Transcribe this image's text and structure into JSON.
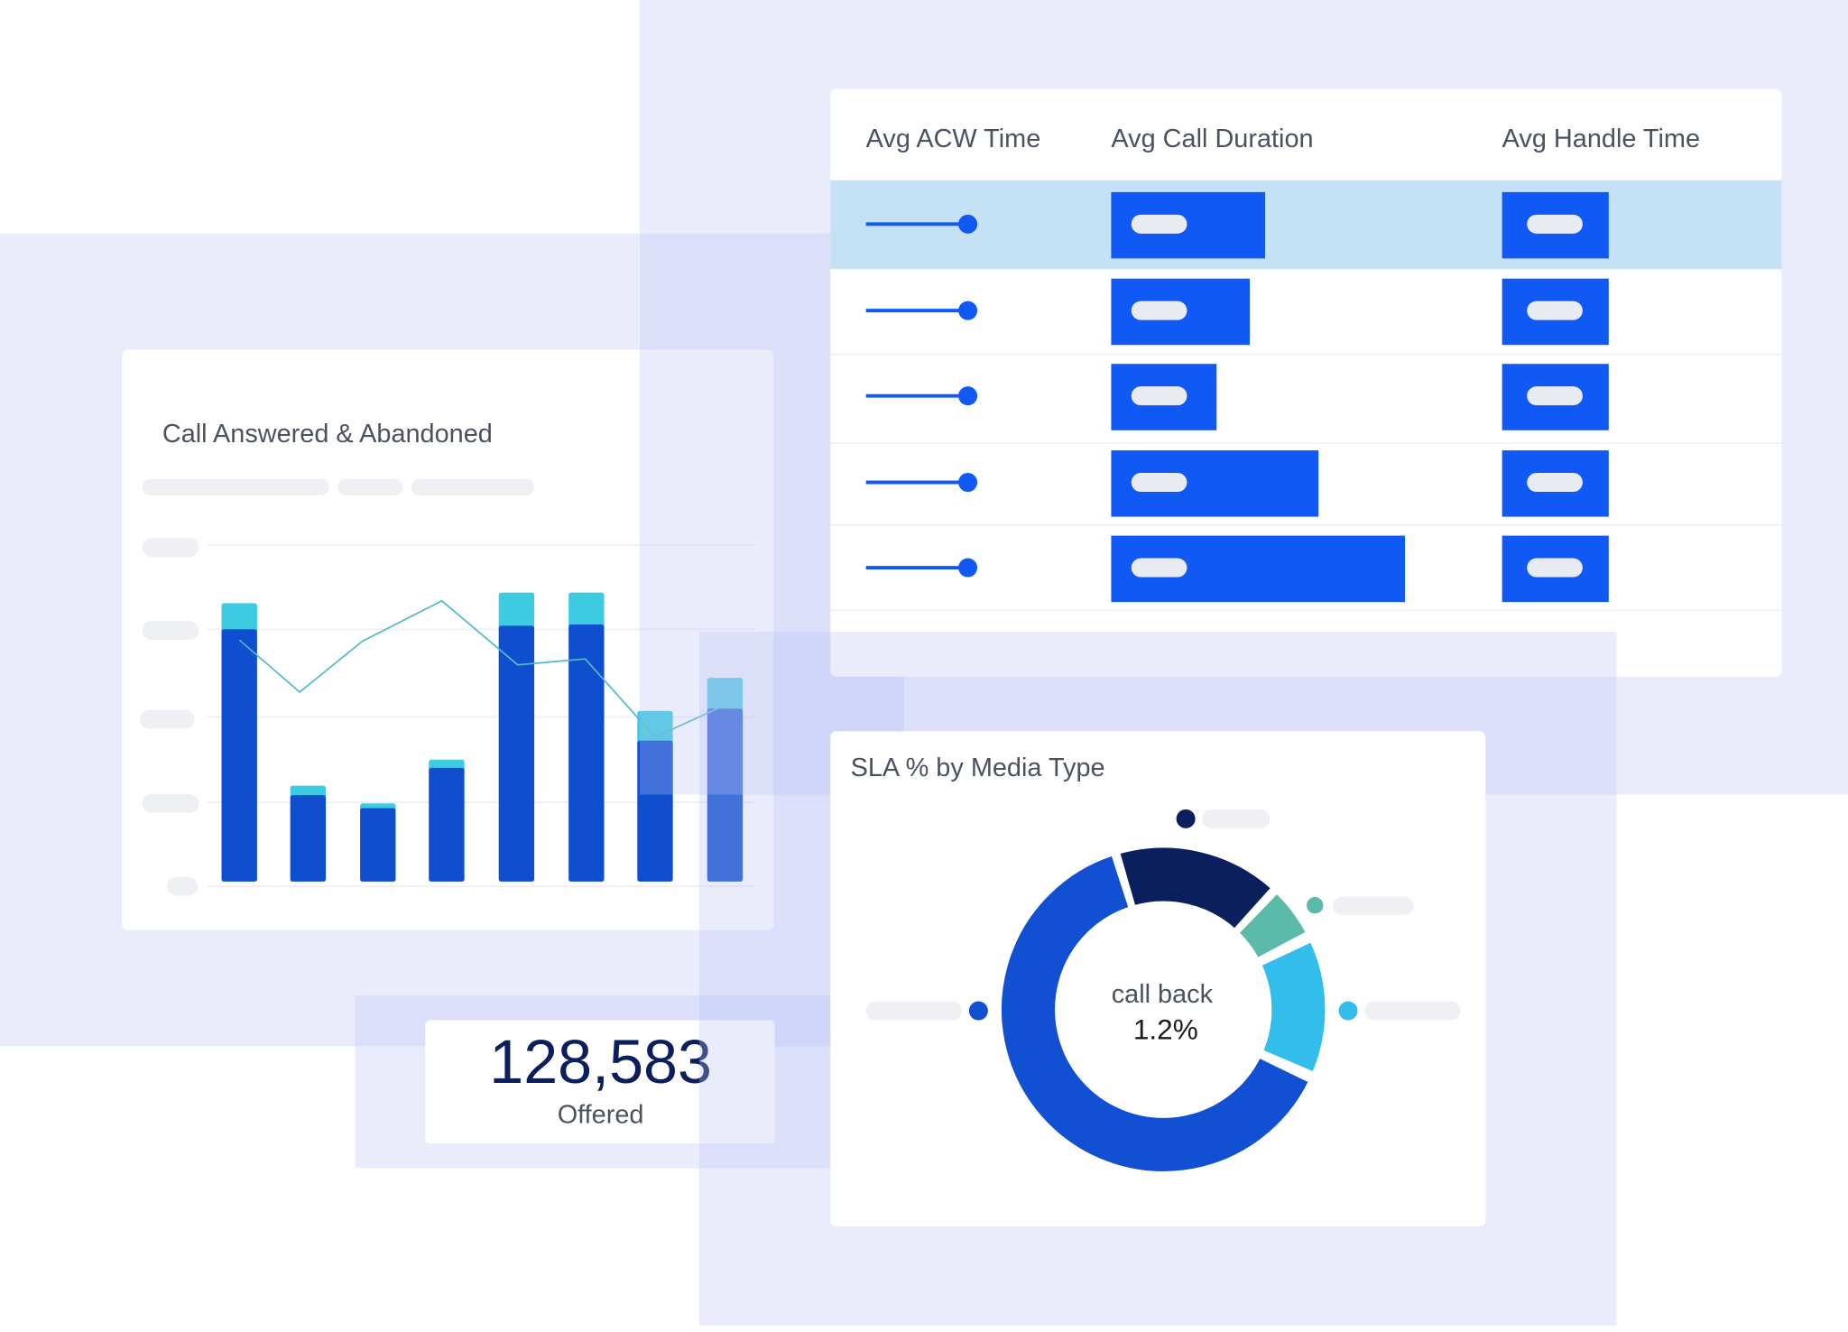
{
  "bar_card": {
    "title": "Call Answered & Abandoned"
  },
  "table": {
    "columns": [
      "Avg ACW Time",
      "Avg Call Duration",
      "Avg Handle Time"
    ]
  },
  "kpi": {
    "value": "128,583",
    "label": "Offered"
  },
  "donut_card": {
    "title": "SLA % by Media Type",
    "center_label": "call back",
    "center_value": "1.2%"
  }
}
